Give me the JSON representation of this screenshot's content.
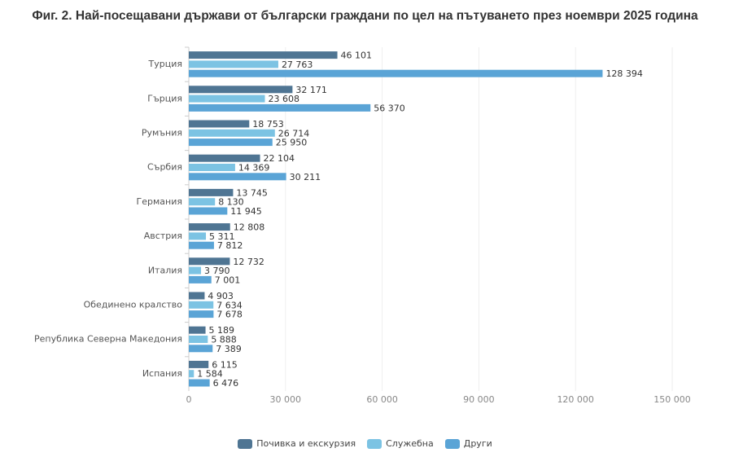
{
  "chart_data": {
    "type": "bar",
    "orientation": "horizontal",
    "title": "Фиг. 2. Най-посещавани държави от български граждани по цел на пътуването през ноември 2025 година",
    "categories": [
      "Турция",
      "Гърция",
      "Румъния",
      "Сърбия",
      "Германия",
      "Австрия",
      "Италия",
      "Обединено кралство",
      "Република Северна Македония",
      "Испания"
    ],
    "series": [
      {
        "name": "Почивка и екскурзия",
        "color": "#4f7593",
        "values": [
          46101,
          32171,
          18753,
          22104,
          13745,
          12808,
          12732,
          4903,
          5189,
          6115
        ]
      },
      {
        "name": "Служебна",
        "color": "#7cc3e3",
        "values": [
          27763,
          23608,
          26714,
          14369,
          8130,
          5311,
          3790,
          7634,
          5888,
          1584
        ]
      },
      {
        "name": "Други",
        "color": "#5aa4d6",
        "values": [
          128394,
          56370,
          25950,
          30211,
          11945,
          7812,
          7001,
          7678,
          7389,
          6476
        ]
      }
    ],
    "xlim": [
      0,
      150000
    ],
    "xticks": [
      0,
      30000,
      60000,
      90000,
      120000,
      150000
    ],
    "xtick_labels": [
      "0",
      "30 000",
      "60 000",
      "90 000",
      "120 000",
      "150 000"
    ],
    "grid": true,
    "legend": "bottom"
  }
}
